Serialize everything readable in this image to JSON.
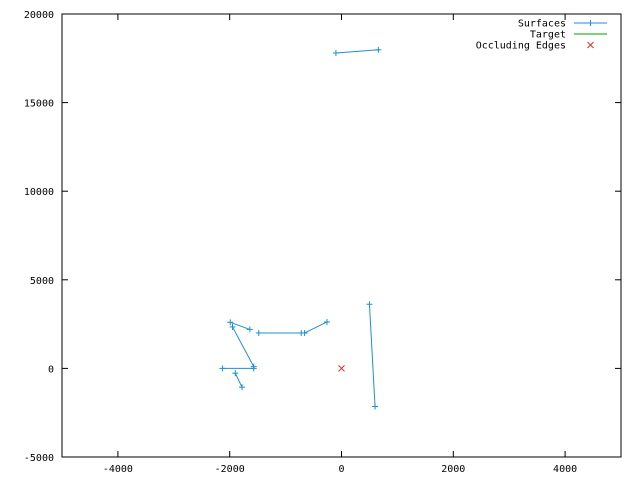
{
  "chart_data": {
    "type": "line",
    "xlim": [
      -5000,
      5000
    ],
    "ylim": [
      -5000,
      20000
    ],
    "x_ticks": [
      -4000,
      -2000,
      0,
      2000,
      4000
    ],
    "y_ticks": [
      -5000,
      0,
      5000,
      10000,
      15000,
      20000
    ],
    "grid": false,
    "legend_position": "top-right",
    "colors": {
      "surfaces": "#1e8fd0",
      "target": "#00a000",
      "occluding": "#e03030"
    },
    "legend": [
      {
        "key": "surfaces",
        "label": "Surfaces",
        "marker": "line-plus"
      },
      {
        "key": "target",
        "label": "Target",
        "marker": "line"
      },
      {
        "key": "occluding",
        "label": "Occluding Edges",
        "marker": "cross"
      }
    ],
    "surfaces": [
      [
        [
          -100,
          17800
        ],
        [
          660,
          17980
        ]
      ],
      [
        [
          -1990,
          2600
        ],
        [
          -1640,
          2200
        ]
      ],
      [
        [
          -1950,
          2340
        ],
        [
          -1570,
          100
        ]
      ],
      [
        [
          -1480,
          2000
        ],
        [
          -720,
          2000
        ]
      ],
      [
        [
          -660,
          2000
        ],
        [
          -260,
          2620
        ]
      ],
      [
        [
          -2130,
          0
        ],
        [
          -1570,
          0
        ]
      ],
      [
        [
          -1900,
          -270
        ],
        [
          -1780,
          -1060
        ]
      ],
      [
        [
          500,
          3620
        ],
        [
          600,
          -2150
        ]
      ]
    ],
    "occluding_edges": [
      [
        0,
        0
      ]
    ]
  }
}
